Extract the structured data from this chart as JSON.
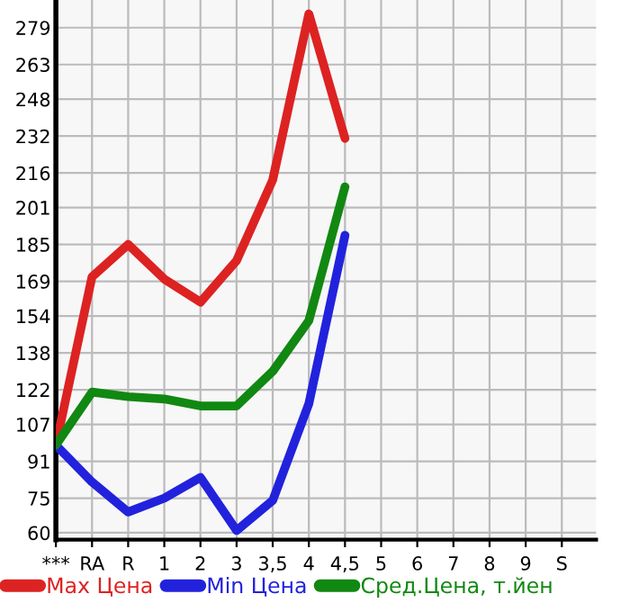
{
  "chart_data": {
    "type": "line",
    "categories": [
      "***",
      "RA",
      "R",
      "1",
      "2",
      "3",
      "3,5",
      "4",
      "4,5",
      "5",
      "6",
      "7",
      "8",
      "9",
      "S"
    ],
    "series": [
      {
        "name": "Max Цена",
        "color": "#dd2222",
        "values": [
          98,
          171,
          185,
          170,
          160,
          178,
          213,
          285,
          231,
          null,
          null,
          null,
          null,
          null,
          null
        ]
      },
      {
        "name": "Min Цена",
        "color": "#2222dd",
        "values": [
          98,
          82,
          69,
          75,
          84,
          61,
          74,
          116,
          189,
          null,
          null,
          null,
          null,
          null,
          null
        ]
      },
      {
        "name": "Сред.Цена, т.йен",
        "color": "#118811",
        "values": [
          98,
          121,
          119,
          118,
          115,
          115,
          130,
          152,
          210,
          null,
          null,
          null,
          null,
          null,
          null
        ]
      }
    ],
    "ylim": [
      57,
      291
    ],
    "yticks": [
      60,
      75,
      91,
      107,
      122,
      138,
      154,
      169,
      185,
      201,
      216,
      232,
      248,
      263,
      279
    ],
    "grid": true,
    "legend": "bottom",
    "marker": "none",
    "line_style": "solid"
  }
}
